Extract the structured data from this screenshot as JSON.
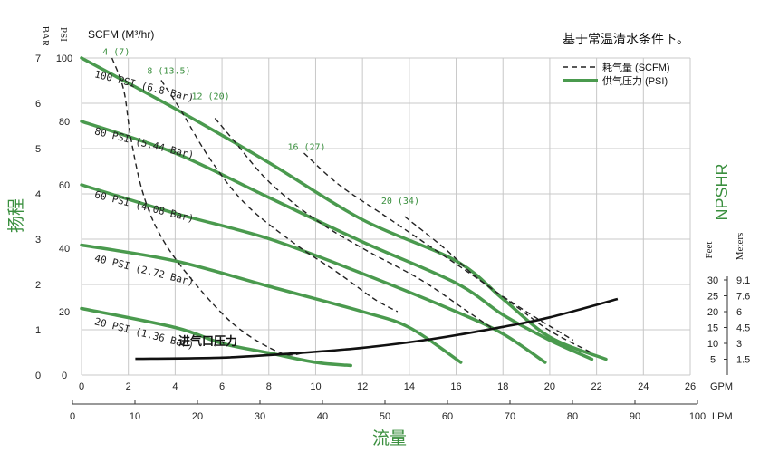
{
  "chart_data": {
    "type": "line",
    "title": "基于常温清水条件下。",
    "xlabel": "流量",
    "ylabel": "扬程",
    "y2label": "NPSHR",
    "scfm_label": "SCFM (M³/hr)",
    "inlet_label": "进气口压力",
    "unit_labels": {
      "bar": "BAR",
      "psi": "PSI",
      "gpm": "GPM",
      "lpm": "LPM",
      "feet": "Feet",
      "meters": "Meters"
    },
    "legend": {
      "position": "top-right",
      "items": [
        {
          "label": "耗气量 (SCFM)",
          "style": "dashed",
          "color": "#222222"
        },
        {
          "label": "供气压力 (PSI)",
          "style": "solid",
          "color": "#4a9a4e"
        }
      ]
    },
    "colors": {
      "pressure": "#4a9a4e",
      "air": "#222222",
      "npshr": "#111111",
      "accent_text": "#3a8f3e",
      "grid": "#c8c8c8"
    },
    "axes": {
      "gpm_ticks": [
        "0",
        "2",
        "4",
        "6",
        "8",
        "10",
        "12",
        "14",
        "16",
        "18",
        "20",
        "22",
        "24",
        "26"
      ],
      "gpm_range": [
        0,
        26
      ],
      "lpm_ticks": [
        "0",
        "10",
        "20",
        "30",
        "40",
        "50",
        "60",
        "70",
        "80",
        "90",
        "100"
      ],
      "lpm_range": [
        0,
        100
      ],
      "bar_ticks": [
        "0",
        "1",
        "2",
        "3",
        "4",
        "5",
        "6",
        "7"
      ],
      "bar_range": [
        0,
        7
      ],
      "psi_ticks": [
        "0",
        "20",
        "40",
        "60",
        "80",
        "100"
      ],
      "psi_range": [
        0,
        100
      ],
      "npshr_feet_ticks": [
        "5",
        "10",
        "15",
        "20",
        "25",
        "30"
      ],
      "npshr_meter_ticks": [
        "1.5",
        "3",
        "4.5",
        "6",
        "7.6",
        "9.1"
      ],
      "npshr_feet_range": [
        0,
        30
      ]
    },
    "grid": true,
    "series": [
      {
        "name": "100 PSI (6.8 Bar)",
        "kind": "pressure",
        "points": [
          [
            0,
            100
          ],
          [
            4,
            84
          ],
          [
            8,
            67
          ],
          [
            12,
            49
          ],
          [
            16,
            36
          ],
          [
            18,
            24
          ],
          [
            20,
            12
          ],
          [
            22.4,
            5
          ]
        ]
      },
      {
        "name": "80 PSI (5.44 Bar)",
        "kind": "pressure",
        "points": [
          [
            0,
            80
          ],
          [
            4,
            70
          ],
          [
            8,
            56
          ],
          [
            12,
            42
          ],
          [
            16,
            29
          ],
          [
            18,
            19
          ],
          [
            20,
            11
          ],
          [
            21.8,
            5
          ]
        ]
      },
      {
        "name": "60 PSI (4.08 Bar)",
        "kind": "pressure",
        "points": [
          [
            0,
            60
          ],
          [
            4,
            51
          ],
          [
            8,
            43
          ],
          [
            12,
            32
          ],
          [
            16,
            20
          ],
          [
            18,
            13
          ],
          [
            19.8,
            4
          ]
        ]
      },
      {
        "name": "40 PSI (2.72 Bar)",
        "kind": "pressure",
        "points": [
          [
            0,
            41
          ],
          [
            4,
            36
          ],
          [
            8,
            28
          ],
          [
            12,
            20
          ],
          [
            14,
            15
          ],
          [
            16.2,
            4
          ]
        ]
      },
      {
        "name": "20 PSI (1.36 Bar)",
        "kind": "pressure",
        "points": [
          [
            0,
            21
          ],
          [
            4,
            15
          ],
          [
            6,
            10
          ],
          [
            8,
            7
          ],
          [
            10,
            4
          ],
          [
            11.5,
            3
          ]
        ]
      },
      {
        "name": "4 (7)",
        "kind": "air",
        "points": [
          [
            1.3,
            100
          ],
          [
            1.8,
            90
          ],
          [
            2.1,
            75
          ],
          [
            2.6,
            58
          ],
          [
            3.3,
            45
          ],
          [
            4.5,
            32
          ],
          [
            6.5,
            16
          ],
          [
            8.5,
            7
          ],
          [
            9.5,
            7
          ]
        ]
      },
      {
        "name": "8 (13.5)",
        "kind": "air",
        "points": [
          [
            3.4,
            93
          ],
          [
            4.2,
            84
          ],
          [
            5.5,
            68
          ],
          [
            7,
            54
          ],
          [
            9,
            42
          ],
          [
            11,
            32
          ],
          [
            12.5,
            24
          ],
          [
            13.5,
            20
          ]
        ]
      },
      {
        "name": "12 (20)",
        "kind": "air",
        "points": [
          [
            5.7,
            81
          ],
          [
            6.5,
            74
          ],
          [
            8,
            61
          ],
          [
            10,
            49
          ],
          [
            12,
            40
          ],
          [
            14.5,
            30
          ],
          [
            16.5,
            20
          ],
          [
            17.5,
            15
          ]
        ]
      },
      {
        "name": "16 (27)",
        "kind": "air",
        "points": [
          [
            9.5,
            70
          ],
          [
            11,
            60
          ],
          [
            13,
            50
          ],
          [
            15,
            40
          ],
          [
            17,
            30
          ],
          [
            18.5,
            22
          ],
          [
            20,
            14
          ],
          [
            21.8,
            7
          ]
        ]
      },
      {
        "name": "20 (34)",
        "kind": "air",
        "points": [
          [
            13.8,
            50
          ],
          [
            15.5,
            40
          ],
          [
            17,
            30
          ],
          [
            19,
            20
          ],
          [
            21,
            11
          ]
        ]
      },
      {
        "name": "NPSHR",
        "kind": "npshr",
        "points": [
          [
            2.3,
            5.1
          ],
          [
            6,
            5.5
          ],
          [
            9,
            6.8
          ],
          [
            12,
            8.6
          ],
          [
            15,
            11.4
          ],
          [
            18,
            15.2
          ],
          [
            20,
            18.2
          ],
          [
            22.9,
            24
          ]
        ]
      }
    ],
    "line_labels": [
      {
        "text": "100 PSI (6.8 Bar)",
        "gpm": 0.3,
        "psi": 94,
        "color": "#222222"
      },
      {
        "text": "80 PSI (5.44 Bar)",
        "gpm": 0.3,
        "psi": 76,
        "color": "#222222"
      },
      {
        "text": "60 PSI (4.08 Bar)",
        "gpm": 0.3,
        "psi": 56,
        "color": "#222222"
      },
      {
        "text": "40 PSI (2.72 Bar)",
        "gpm": 0.3,
        "psi": 36,
        "color": "#222222"
      },
      {
        "text": "20 PSI (1.36 Bar)",
        "gpm": 0.3,
        "psi": 16,
        "color": "#222222"
      }
    ],
    "air_labels": [
      {
        "text": "4 (7)",
        "gpm": 0.9,
        "psi": 101,
        "color": "#3a8f3e"
      },
      {
        "text": "8 (13.5)",
        "gpm": 2.8,
        "psi": 95,
        "color": "#3a8f3e"
      },
      {
        "text": "12 (20)",
        "gpm": 4.7,
        "psi": 87,
        "color": "#3a8f3e"
      },
      {
        "text": "16 (27)",
        "gpm": 8.8,
        "psi": 71,
        "color": "#3a8f3e"
      },
      {
        "text": "20 (34)",
        "gpm": 12.8,
        "psi": 54,
        "color": "#3a8f3e"
      }
    ]
  }
}
